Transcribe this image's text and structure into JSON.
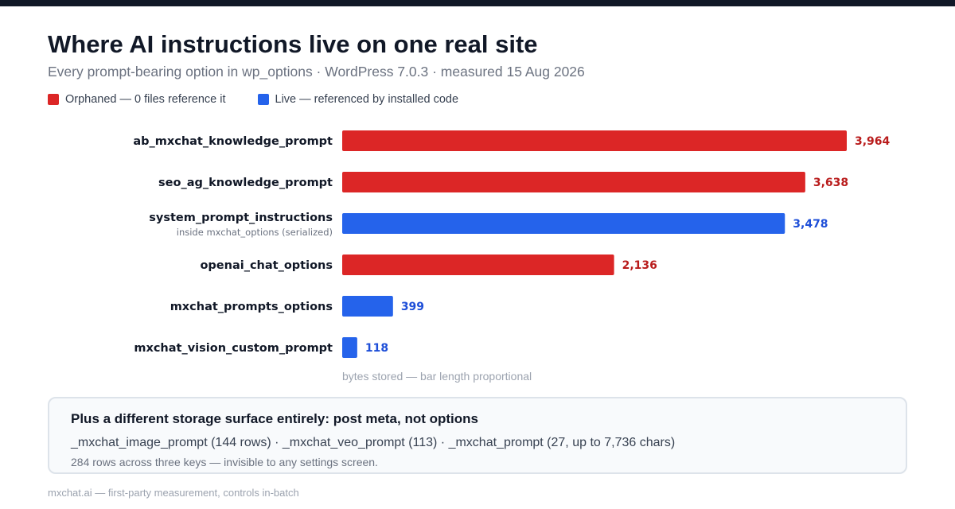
{
  "header": {
    "title": "Where AI instructions live on one real site",
    "subtitle": "Every prompt-bearing option in wp_options · WordPress 7.0.3 · measured 15 Aug 2026"
  },
  "legend": {
    "items": [
      {
        "label": "Orphaned — 0 files reference it",
        "color": "#dc2626"
      },
      {
        "label": "Live — referenced by installed code",
        "color": "#2563eb"
      }
    ]
  },
  "chart_data": {
    "type": "bar",
    "orientation": "horizontal",
    "categories": [
      "ab_mxchat_knowledge_prompt",
      "seo_ag_knowledge_prompt",
      "system_prompt_instructions",
      "openai_chat_options",
      "mxchat_prompts_options",
      "mxchat_vision_custom_prompt"
    ],
    "sublabels": [
      "",
      "",
      "inside mxchat_options (serialized)",
      "",
      "",
      ""
    ],
    "values": [
      3964,
      3638,
      3478,
      2136,
      399,
      118
    ],
    "value_labels": [
      "3,964",
      "3,638",
      "3,478",
      "2,136",
      "399",
      "118"
    ],
    "status": [
      "Orphaned",
      "Orphaned",
      "Live",
      "Orphaned",
      "Live",
      "Live"
    ],
    "colors": {
      "Orphaned": {
        "bar": "#dc2626",
        "text": "#b91c1c"
      },
      "Live": {
        "bar": "#2563eb",
        "text": "#1d4ed8"
      }
    },
    "xlabel": "bytes stored — bar length proportional",
    "xlim": [
      0,
      3964
    ]
  },
  "callout": {
    "title": "Plus a different storage surface entirely: post meta, not options",
    "body": "_mxchat_image_prompt (144 rows) · _mxchat_veo_prompt (113) · _mxchat_prompt (27, up to 7,736 chars)",
    "note": "284 rows across three keys — invisible to any settings screen."
  },
  "footer": {
    "text": "mxchat.ai — first-party measurement, controls in-batch"
  }
}
